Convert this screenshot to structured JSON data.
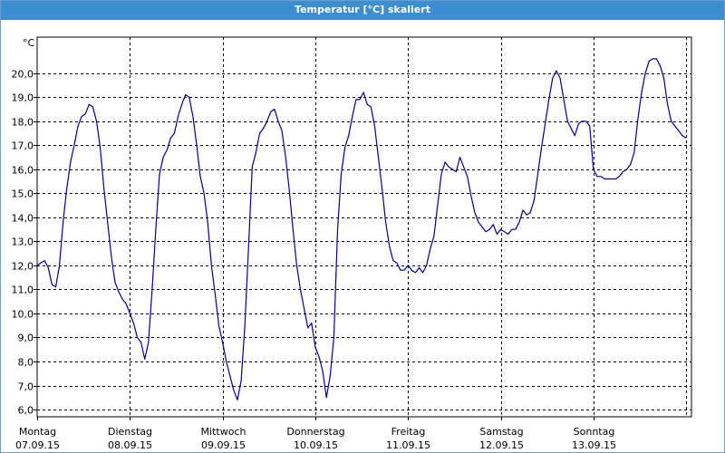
{
  "window": {
    "title": "Temperatur [°C] skaliert"
  },
  "chart_data": {
    "type": "line",
    "ylabel": "°C",
    "ylim": [
      5.7,
      21.5
    ],
    "yticks": [
      6.0,
      7.0,
      8.0,
      9.0,
      10.0,
      11.0,
      12.0,
      13.0,
      14.0,
      15.0,
      16.0,
      17.0,
      18.0,
      19.0,
      20.0
    ],
    "ytick_labels": [
      "6,0",
      "7,0",
      "8,0",
      "9,0",
      "10,0",
      "11,0",
      "12,0",
      "13,0",
      "14,0",
      "15,0",
      "16,0",
      "17,0",
      "18,0",
      "19,0",
      "20,0"
    ],
    "x_label_lines": [
      [
        "Montag",
        "07.09.15"
      ],
      [
        "Dienstag",
        "08.09.15"
      ],
      [
        "Mittwoch",
        "09.09.15"
      ],
      [
        "Donnerstag",
        "10.09.15"
      ],
      [
        "Freitag",
        "11.09.15"
      ],
      [
        "Samstag",
        "12.09.15"
      ],
      [
        "Sonntag",
        "13.09.15"
      ]
    ],
    "xlim_days": [
      0,
      7.0
    ],
    "grid": true,
    "line_color": "#00008b",
    "series": [
      {
        "values_x_days": [
          0.0,
          0.04,
          0.08,
          0.12,
          0.16,
          0.2,
          0.24,
          0.28,
          0.32,
          0.36,
          0.4,
          0.44,
          0.48,
          0.52,
          0.56,
          0.6,
          0.64,
          0.68,
          0.72,
          0.76,
          0.8,
          0.84,
          0.88,
          0.92,
          0.96,
          1.0,
          1.04,
          1.08,
          1.12,
          1.16,
          1.2,
          1.24,
          1.28,
          1.32,
          1.36,
          1.4,
          1.44,
          1.48,
          1.52,
          1.56,
          1.6,
          1.64,
          1.68,
          1.72,
          1.76,
          1.8,
          1.84,
          1.88,
          1.92,
          1.96,
          2.0,
          2.04,
          2.08,
          2.12,
          2.16,
          2.2,
          2.24,
          2.28,
          2.32,
          2.36,
          2.4,
          2.44,
          2.48,
          2.52,
          2.56,
          2.6,
          2.64,
          2.68,
          2.72,
          2.76,
          2.8,
          2.84,
          2.88,
          2.92,
          2.96,
          3.0,
          3.04,
          3.08,
          3.12,
          3.16,
          3.2,
          3.24,
          3.28,
          3.32,
          3.36,
          3.4,
          3.44,
          3.48,
          3.52,
          3.56,
          3.6,
          3.64,
          3.68,
          3.72,
          3.76,
          3.8,
          3.84,
          3.88,
          3.92,
          3.96,
          4.0,
          4.04,
          4.08,
          4.12,
          4.16,
          4.2,
          4.24,
          4.28,
          4.32,
          4.36,
          4.4,
          4.44,
          4.48,
          4.52,
          4.56,
          4.6,
          4.64,
          4.68,
          4.72,
          4.76,
          4.8,
          4.84,
          4.88,
          4.92,
          4.96,
          5.0,
          5.04,
          5.08,
          5.12,
          5.16,
          5.2,
          5.24,
          5.28,
          5.32,
          5.36,
          5.4,
          5.44,
          5.48,
          5.52,
          5.56,
          5.6,
          5.64,
          5.68,
          5.72,
          5.76,
          5.8,
          5.84,
          5.88,
          5.92,
          5.96,
          6.0,
          6.04,
          6.08,
          6.12,
          6.16,
          6.2,
          6.24,
          6.28,
          6.32,
          6.36,
          6.4,
          6.44,
          6.48,
          6.52,
          6.56,
          6.6,
          6.64,
          6.68,
          6.72,
          6.76,
          6.8,
          6.84,
          6.88,
          6.92,
          6.96,
          7.0
        ],
        "values": [
          12.0,
          12.1,
          12.2,
          11.9,
          11.2,
          11.1,
          12.0,
          13.8,
          15.2,
          16.3,
          17.0,
          17.8,
          18.2,
          18.3,
          18.7,
          18.6,
          18.0,
          16.9,
          15.2,
          13.8,
          12.4,
          11.3,
          10.9,
          10.6,
          10.4,
          10.0,
          9.6,
          9.0,
          8.8,
          8.1,
          8.8,
          11.0,
          13.5,
          15.8,
          16.5,
          16.8,
          17.3,
          17.5,
          18.2,
          18.7,
          19.1,
          19.0,
          18.2,
          17.0,
          15.7,
          15.0,
          13.8,
          12.0,
          10.8,
          9.5,
          8.8,
          8.0,
          7.4,
          6.8,
          6.4,
          7.2,
          9.5,
          12.7,
          16.1,
          16.7,
          17.5,
          17.7,
          18.0,
          18.4,
          18.5,
          18.0,
          17.6,
          16.5,
          15.1,
          13.5,
          12.0,
          11.0,
          10.2,
          9.4,
          9.6,
          8.6,
          8.2,
          7.6,
          6.5,
          7.4,
          9.0,
          13.5,
          15.8,
          16.9,
          17.4,
          18.2,
          18.9,
          18.9,
          19.2,
          18.7,
          18.6,
          17.8,
          16.5,
          15.2,
          13.8,
          12.8,
          12.2,
          12.1,
          11.8,
          11.8,
          12.0,
          11.8,
          11.7,
          11.9,
          11.7,
          12.0,
          12.7,
          13.2,
          14.5,
          15.8,
          16.3,
          16.1,
          16.0,
          15.9,
          16.5,
          16.1,
          15.7,
          14.9,
          14.2,
          13.8,
          13.6,
          13.4,
          13.5,
          13.7,
          13.3,
          13.5,
          13.4,
          13.3,
          13.5,
          13.5,
          13.8,
          14.3,
          14.1,
          14.2,
          14.7,
          15.8,
          16.9,
          17.9,
          18.9,
          19.8,
          20.1,
          19.8,
          18.9,
          18.0,
          17.7,
          17.4,
          17.9,
          18.0,
          18.0,
          17.8,
          16.0,
          15.7,
          15.7,
          15.6,
          15.6,
          15.6,
          15.6,
          15.7,
          15.9,
          16.0,
          16.2,
          16.7,
          18.1,
          19.2,
          20.0,
          20.5,
          20.6,
          20.6,
          20.3,
          19.8,
          18.7,
          18.0,
          17.8,
          17.6,
          17.4,
          17.3,
          17.25
        ]
      }
    ]
  }
}
